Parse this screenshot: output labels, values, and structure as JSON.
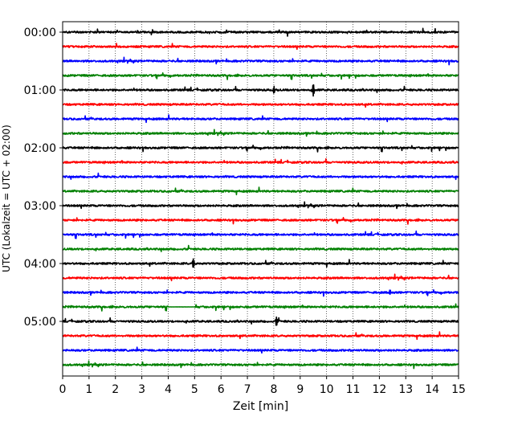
{
  "chart_data": {
    "type": "line",
    "xlabel": "Zeit  [min]",
    "ylabel": "UTC (Lokalzeit = UTC + 02:00)",
    "xlim": [
      0,
      15
    ],
    "x_ticks": [
      0,
      1,
      2,
      3,
      4,
      5,
      6,
      7,
      8,
      9,
      10,
      11,
      12,
      13,
      14,
      15
    ],
    "x_grid": true,
    "y_grid": false,
    "y_tick_labels": [
      "00:00",
      "01:00",
      "02:00",
      "03:00",
      "04:00",
      "05:00"
    ],
    "row_colors": [
      "#000000",
      "#ff0000",
      "#0000ff",
      "#008000"
    ],
    "row_count": 24,
    "row_interval_minutes": 15,
    "gaps": [
      {
        "row": 19,
        "x_start": 4.0,
        "x_end": 5.0
      }
    ],
    "notable_spikes": [
      {
        "row": 4,
        "x": 9.5,
        "amplitude": 1.6
      },
      {
        "row": 4,
        "x": 8.0,
        "amplitude": 0.9
      },
      {
        "row": 16,
        "x": 4.95,
        "amplitude": 1.2
      },
      {
        "row": 20,
        "x": 8.1,
        "amplitude": 1.1
      },
      {
        "row": 18,
        "x": 12.4,
        "amplitude": 0.7
      }
    ]
  }
}
